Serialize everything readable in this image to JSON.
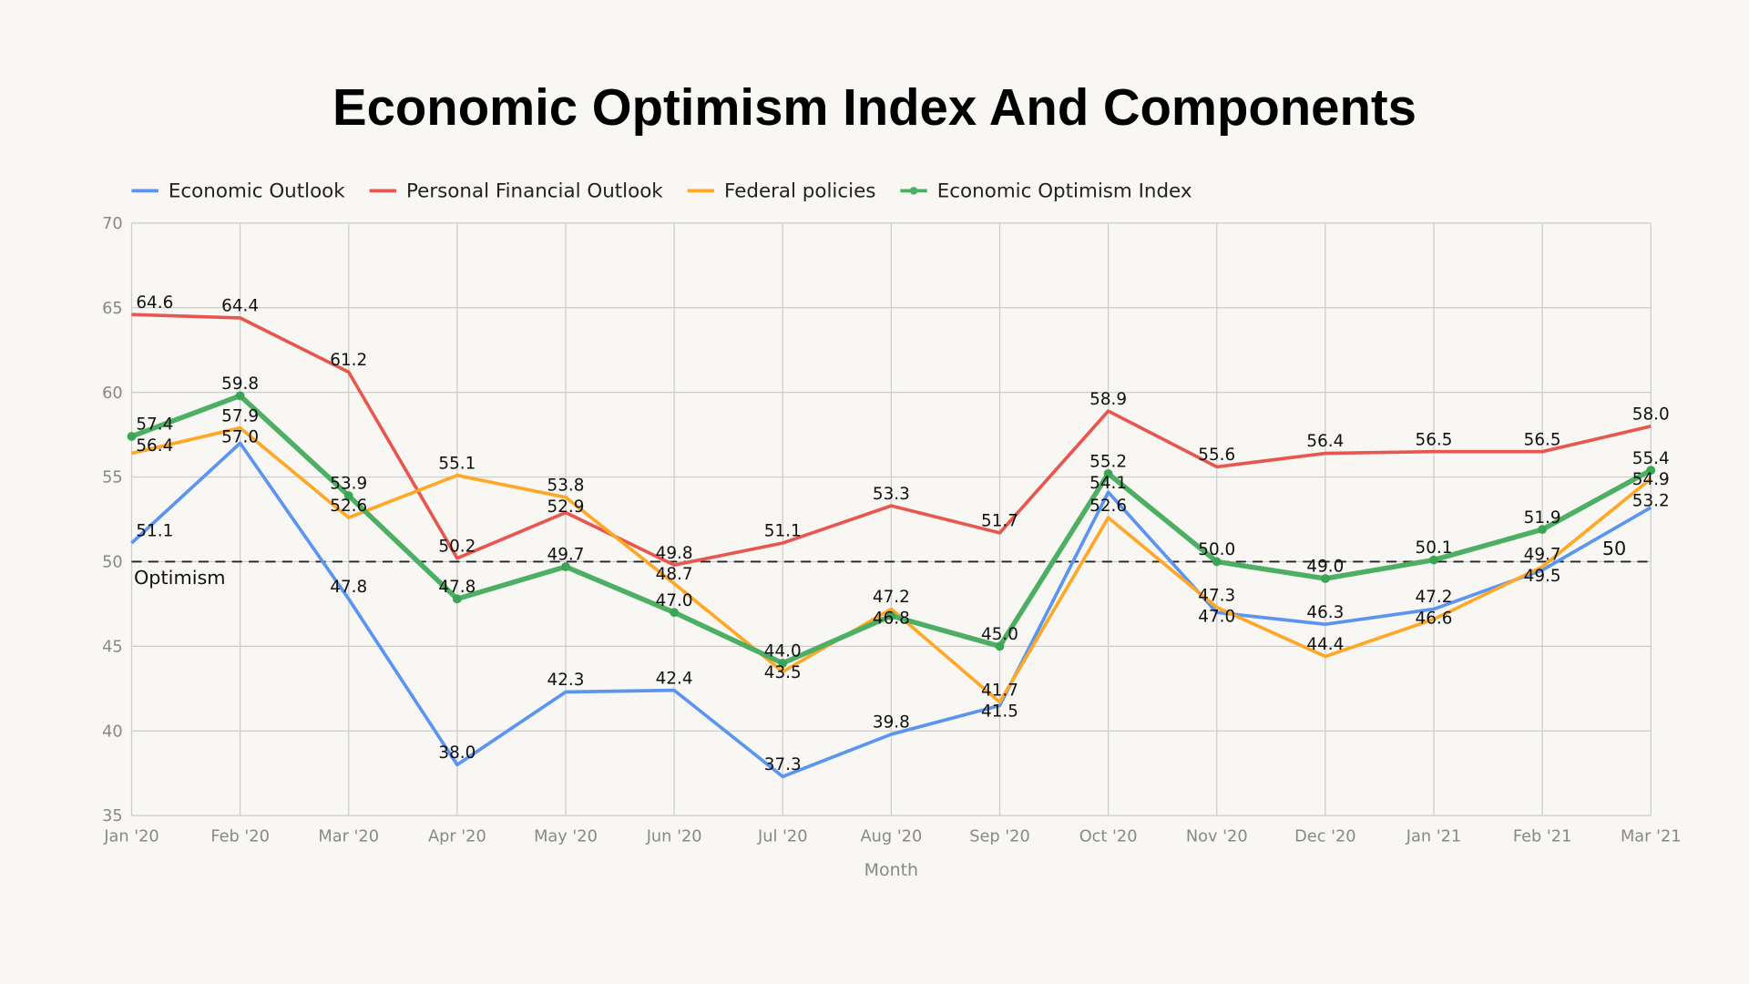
{
  "chart_data": {
    "type": "line",
    "title": "Economic Optimism Index And Components",
    "xlabel": "Month",
    "ylabel": "",
    "ylim": [
      35,
      70
    ],
    "yticks": [
      35,
      40,
      45,
      50,
      55,
      60,
      65,
      70
    ],
    "grid": true,
    "legend_position": "top-left",
    "categories": [
      "Jan '20",
      "Feb '20",
      "Mar '20",
      "Apr '20",
      "May '20",
      "Jun '20",
      "Jul '20",
      "Aug '20",
      "Sep '20",
      "Oct '20",
      "Nov '20",
      "Dec '20",
      "Jan '21",
      "Feb '21",
      "Mar '21"
    ],
    "series": [
      {
        "name": "Economic Outlook",
        "color": "#5b95f0",
        "markers": false,
        "values": [
          51.1,
          57.0,
          47.8,
          38.0,
          42.3,
          42.4,
          37.3,
          39.8,
          41.5,
          54.1,
          47.0,
          46.3,
          47.2,
          49.5,
          53.2
        ]
      },
      {
        "name": "Personal Financial Outlook",
        "color": "#e8574f",
        "markers": false,
        "values": [
          64.6,
          64.4,
          61.2,
          50.2,
          52.9,
          49.8,
          51.1,
          53.3,
          51.7,
          58.9,
          55.6,
          56.4,
          56.5,
          56.5,
          58.0
        ]
      },
      {
        "name": "Federal policies",
        "color": "#ffa726",
        "markers": false,
        "values": [
          56.4,
          57.9,
          52.6,
          55.1,
          53.8,
          48.7,
          43.5,
          47.2,
          41.7,
          52.6,
          47.3,
          44.4,
          46.6,
          49.7,
          54.9
        ]
      },
      {
        "name": "Economic Optimism Index",
        "color": "#4caf63",
        "markers": true,
        "values": [
          57.4,
          59.8,
          53.9,
          47.8,
          49.7,
          47.0,
          44.0,
          46.8,
          45.0,
          55.2,
          50.0,
          49.0,
          50.1,
          51.9,
          55.4
        ]
      }
    ],
    "reference_line": {
      "value": 50,
      "label_left": "Optimism",
      "label_right": "50",
      "style": "dashed",
      "color": "#222222"
    }
  }
}
